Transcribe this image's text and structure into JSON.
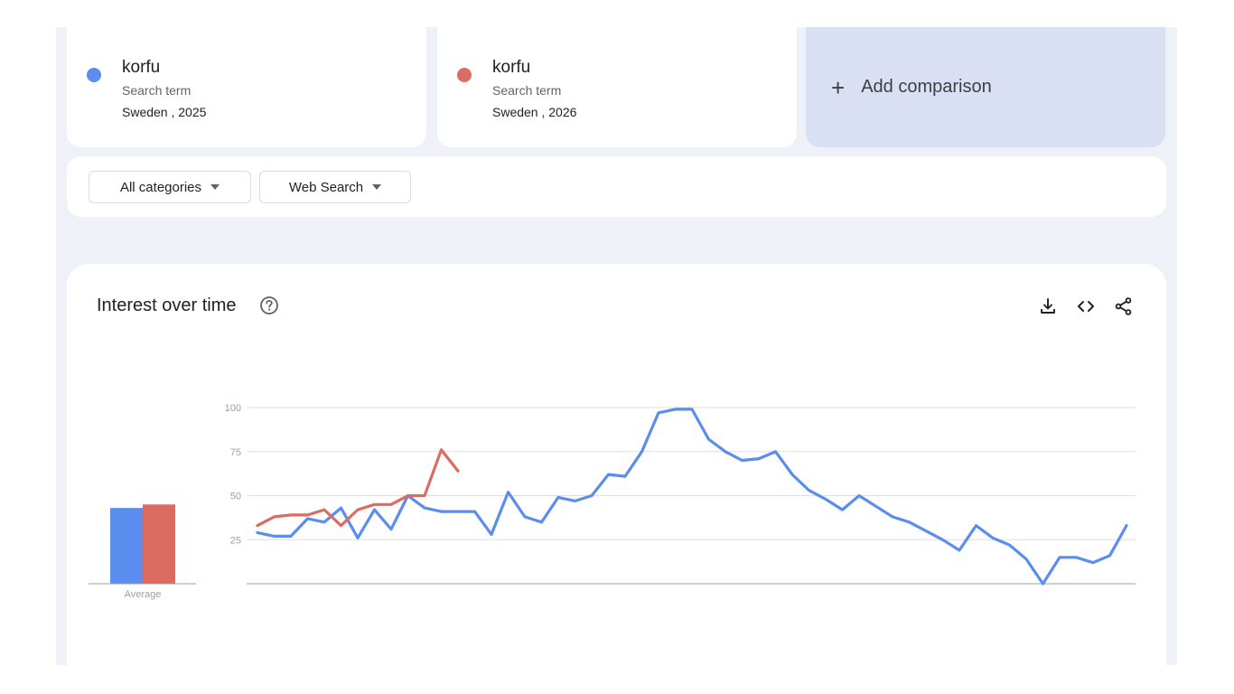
{
  "terms": [
    {
      "name": "korfu",
      "kind": "Search term",
      "meta": "Sweden , 2025",
      "color": "#5b8def"
    },
    {
      "name": "korfu",
      "kind": "Search term",
      "meta": "Sweden , 2026",
      "color": "#dc6b61"
    }
  ],
  "add_comparison": {
    "plus": "+",
    "label": "Add comparison"
  },
  "filters": {
    "category": "All categories",
    "search_type": "Web Search"
  },
  "chart_section": {
    "title": "Interest over time",
    "icons": [
      "help-icon",
      "download-icon",
      "embed-icon",
      "share-icon"
    ]
  },
  "chart_data": {
    "type": "line",
    "title": "Interest over time",
    "ylim": [
      0,
      100
    ],
    "y_ticks": [
      25,
      50,
      75,
      100
    ],
    "grid": true,
    "average_label": "Average",
    "average_bars": [
      {
        "series": "korfu (Sweden , 2025)",
        "value": 43
      },
      {
        "series": "korfu (Sweden , 2026)",
        "value": 45
      }
    ],
    "series": [
      {
        "name": "korfu (Sweden , 2025)",
        "color": "#5b8def",
        "values": [
          29,
          27,
          27,
          37,
          35,
          43,
          26,
          42,
          31,
          50,
          43,
          41,
          41,
          41,
          28,
          52,
          38,
          35,
          49,
          47,
          50,
          62,
          61,
          75,
          97,
          99,
          99,
          82,
          75,
          70,
          71,
          75,
          62,
          53,
          48,
          42,
          50,
          44,
          38,
          35,
          30,
          25,
          19,
          33,
          26,
          22,
          14,
          0,
          15,
          15,
          12,
          16,
          33
        ]
      },
      {
        "name": "korfu (Sweden , 2026)",
        "color": "#dc6b61",
        "values": [
          33,
          38,
          39,
          39,
          42,
          33,
          42,
          45,
          45,
          50,
          50,
          76,
          64
        ]
      }
    ]
  }
}
